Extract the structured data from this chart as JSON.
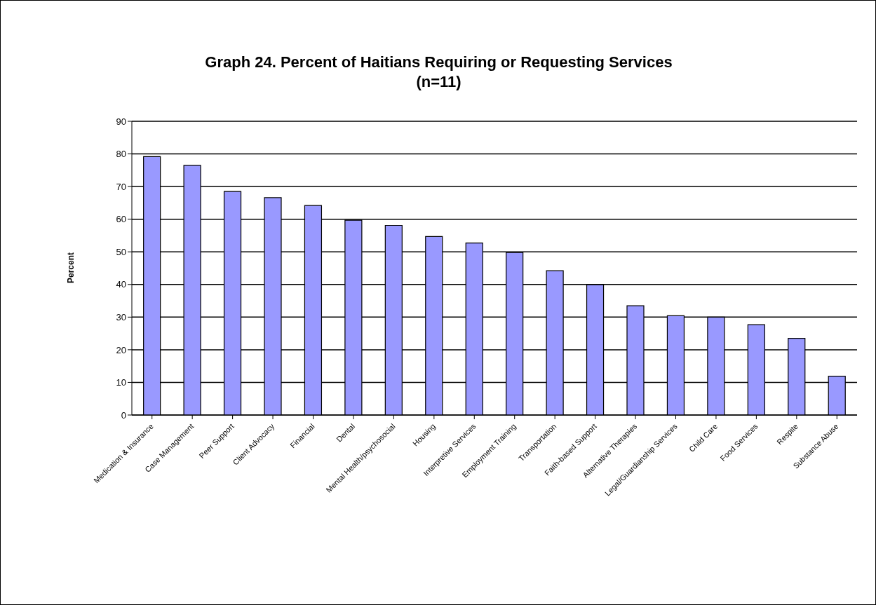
{
  "chart_data": {
    "type": "bar",
    "title": "Graph 24. Percent of Haitians Requiring or Requesting Services\n(n=11)",
    "ylabel": "Percent",
    "categories": [
      "Medication & Insurance",
      "Case Management",
      "Peer Support",
      "Client Advocacy",
      "Financial",
      "Dental",
      "Mental Health/psychosocial",
      "Housing",
      "Interpretive Services",
      "Employment Training",
      "Transportation",
      "Faith-based Support",
      "Alternative Therapies",
      "Legal/Guardianship Services",
      "Child Care",
      "Food Services",
      "Respite",
      "Substance Abuse"
    ],
    "values": [
      79.2,
      76.5,
      68.5,
      66.6,
      64.2,
      59.7,
      58.1,
      54.7,
      52.7,
      49.8,
      44.2,
      39.9,
      33.5,
      30.4,
      30.0,
      27.7,
      23.5,
      11.9
    ],
    "color": "#9999ff",
    "ylim": [
      0,
      90
    ],
    "yticks": [
      0,
      10,
      20,
      30,
      40,
      50,
      60,
      70,
      80,
      90
    ],
    "grid": "y"
  }
}
